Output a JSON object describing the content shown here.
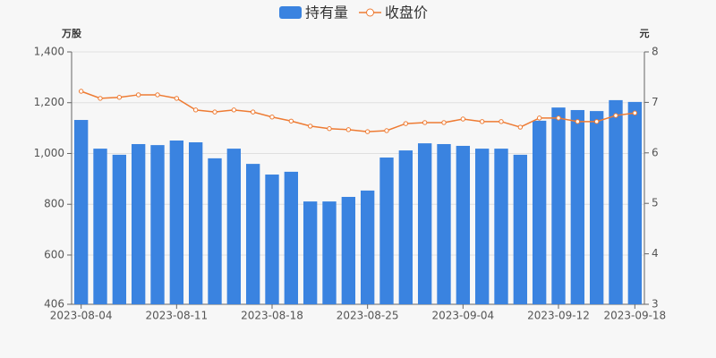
{
  "chart_data": {
    "type": "bar-line",
    "left_unit": "万股",
    "right_unit": "元",
    "categories": [
      "2023-08-04",
      null,
      null,
      null,
      null,
      "2023-08-11",
      null,
      null,
      null,
      null,
      "2023-08-18",
      null,
      null,
      null,
      null,
      "2023-08-25",
      null,
      null,
      null,
      null,
      "2023-09-04",
      null,
      null,
      null,
      null,
      "2023-09-12",
      null,
      null,
      null,
      "2023-09-18"
    ],
    "series": [
      {
        "name": "持有量",
        "type": "bar",
        "color": "#3a83e0",
        "values": [
          1132,
          1019,
          995,
          1037,
          1033,
          1051,
          1044,
          981,
          1019,
          959,
          917,
          928,
          811,
          811,
          829,
          854,
          984,
          1012,
          1040,
          1037,
          1030,
          1019,
          1019,
          995,
          1129,
          1181,
          1171,
          1167,
          1210,
          1203
        ]
      },
      {
        "name": "收盘价",
        "type": "line",
        "axis": "y2",
        "color": "#ee7b33",
        "values": [
          7.22,
          7.08,
          7.1,
          7.15,
          7.15,
          7.08,
          6.85,
          6.81,
          6.85,
          6.81,
          6.71,
          6.63,
          6.53,
          6.48,
          6.46,
          6.42,
          6.44,
          6.58,
          6.6,
          6.6,
          6.67,
          6.62,
          6.62,
          6.51,
          6.69,
          6.69,
          6.62,
          6.62,
          6.74,
          6.79
        ]
      }
    ],
    "ylim": [
      406,
      1400
    ],
    "yticks": [
      406,
      600,
      800,
      {
        "value": 1000,
        "label": "1,000"
      },
      {
        "value": 1200,
        "label": "1,200"
      },
      {
        "value": 1400,
        "label": "1,400"
      }
    ],
    "y2lim": [
      3,
      8
    ],
    "y2ticks": [
      3,
      4,
      5,
      6,
      7,
      8
    ],
    "grid": true
  }
}
